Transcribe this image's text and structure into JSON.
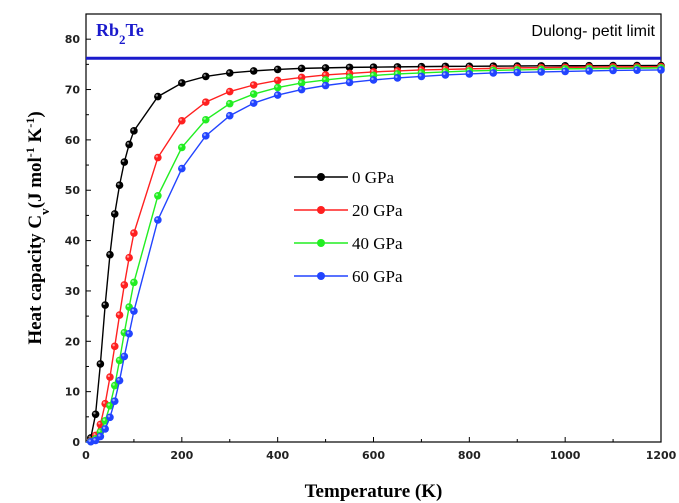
{
  "chart_data": {
    "type": "line",
    "title": "",
    "xlabel": "Temperature (K)",
    "ylabel": {
      "prefix": "Heat capacity C",
      "sub": "v",
      "unit_open": "(J mol",
      "unit_sup1": "-1",
      "unit_mid": " K",
      "unit_sup2": "-1",
      "unit_close": ")"
    },
    "xlim": [
      0,
      1200
    ],
    "ylim": [
      0,
      85
    ],
    "xticks": [
      0,
      200,
      400,
      600,
      800,
      1000,
      1200
    ],
    "yticks": [
      0,
      10,
      20,
      30,
      40,
      50,
      60,
      70,
      80
    ],
    "grid": false,
    "legend_position": "center",
    "annotations": {
      "compound": {
        "main": "Rb",
        "sub": "2",
        "rest": "Te",
        "color": "#1a1acc"
      },
      "limit_label": "Dulong- petit limit",
      "limit_value": 76.2,
      "limit_color": "#1a1acc"
    },
    "series": [
      {
        "name": "0 GPa",
        "color": "#000000",
        "x": [
          0,
          10,
          20,
          30,
          40,
          50,
          60,
          70,
          80,
          90,
          100,
          150,
          200,
          250,
          300,
          350,
          400,
          450,
          500,
          550,
          600,
          650,
          700,
          750,
          800,
          850,
          900,
          950,
          1000,
          1050,
          1100,
          1150,
          1200
        ],
        "y": [
          0,
          0.8,
          5.5,
          15.5,
          27.2,
          37.2,
          45.3,
          51.0,
          55.6,
          59.1,
          61.8,
          68.6,
          71.3,
          72.6,
          73.3,
          73.7,
          74.0,
          74.2,
          74.3,
          74.4,
          74.45,
          74.5,
          74.55,
          74.6,
          74.62,
          74.65,
          74.67,
          74.7,
          74.72,
          74.73,
          74.75,
          74.76,
          74.77
        ]
      },
      {
        "name": "20 GPa",
        "color": "#ff2020",
        "x": [
          0,
          10,
          20,
          30,
          40,
          50,
          60,
          70,
          80,
          90,
          100,
          150,
          200,
          250,
          300,
          350,
          400,
          450,
          500,
          550,
          600,
          650,
          700,
          750,
          800,
          850,
          900,
          950,
          1000,
          1050,
          1100,
          1150,
          1200
        ],
        "y": [
          0,
          0.2,
          1.3,
          3.5,
          7.6,
          12.9,
          19.0,
          25.2,
          31.2,
          36.6,
          41.5,
          56.5,
          63.8,
          67.5,
          69.6,
          70.9,
          71.8,
          72.4,
          72.9,
          73.2,
          73.5,
          73.7,
          73.9,
          74.0,
          74.1,
          74.2,
          74.3,
          74.35,
          74.4,
          74.45,
          74.5,
          74.5,
          74.55
        ]
      },
      {
        "name": "40 GPa",
        "color": "#22ee22",
        "x": [
          0,
          10,
          20,
          30,
          40,
          50,
          60,
          70,
          80,
          90,
          100,
          150,
          200,
          250,
          300,
          350,
          400,
          450,
          500,
          550,
          600,
          650,
          700,
          750,
          800,
          850,
          900,
          950,
          1000,
          1050,
          1100,
          1150,
          1200
        ],
        "y": [
          0,
          0.1,
          0.6,
          2.0,
          4.2,
          7.2,
          11.2,
          16.2,
          21.7,
          26.8,
          31.7,
          48.9,
          58.5,
          64.0,
          67.2,
          69.1,
          70.4,
          71.3,
          71.9,
          72.4,
          72.8,
          73.1,
          73.3,
          73.5,
          73.7,
          73.8,
          73.9,
          74.0,
          74.1,
          74.15,
          74.2,
          74.25,
          74.3
        ]
      },
      {
        "name": "60 GPa",
        "color": "#2244ff",
        "x": [
          0,
          10,
          20,
          30,
          40,
          50,
          60,
          70,
          80,
          90,
          100,
          150,
          200,
          250,
          300,
          350,
          400,
          450,
          500,
          550,
          600,
          650,
          700,
          750,
          800,
          850,
          900,
          950,
          1000,
          1050,
          1100,
          1150,
          1200
        ],
        "y": [
          0,
          0.05,
          0.3,
          1.1,
          2.6,
          4.9,
          8.1,
          12.2,
          17.0,
          21.5,
          26.0,
          44.1,
          54.3,
          60.8,
          64.8,
          67.3,
          68.9,
          70.0,
          70.8,
          71.4,
          71.9,
          72.3,
          72.6,
          72.9,
          73.1,
          73.3,
          73.4,
          73.5,
          73.6,
          73.7,
          73.8,
          73.85,
          73.9
        ]
      }
    ]
  }
}
